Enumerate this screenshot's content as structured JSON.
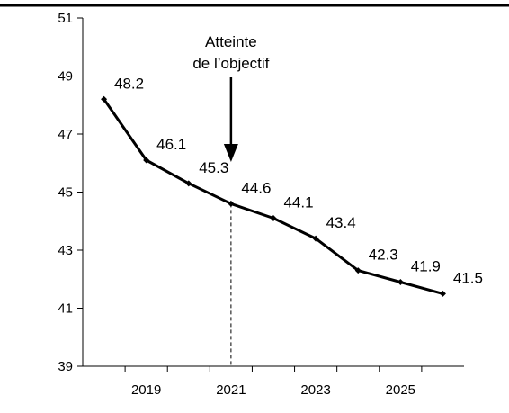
{
  "chart_data": {
    "type": "line",
    "title": "",
    "xlabel": "",
    "ylabel": "",
    "x": [
      2018,
      2019,
      2020,
      2021,
      2022,
      2023,
      2024,
      2025,
      2026
    ],
    "xticks": [
      "2019",
      "2021",
      "2023",
      "2025"
    ],
    "xlim": [
      2017.5,
      2026.5
    ],
    "ylim": [
      39,
      51
    ],
    "yticks": [
      "39",
      "41",
      "43",
      "45",
      "47",
      "49",
      "51"
    ],
    "grid": false,
    "series": [
      {
        "values": [
          48.2,
          46.1,
          45.3,
          44.6,
          44.1,
          43.4,
          42.3,
          41.9,
          41.5
        ],
        "labels": [
          "48.2",
          "46.1",
          "45.3",
          "44.6",
          "44.1",
          "43.4",
          "42.3",
          "41.9",
          "41.5"
        ]
      }
    ],
    "annotation": {
      "lines": [
        "Atteinte",
        "de l’objectif"
      ],
      "x": 2021
    }
  },
  "colors": {
    "line": "#000000",
    "axis": "#000000",
    "frame": "#000000"
  }
}
